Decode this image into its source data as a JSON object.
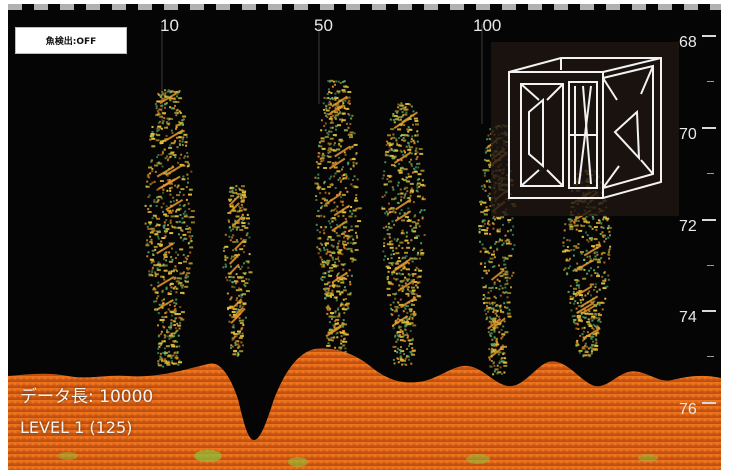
{
  "window": {
    "fish_detection_button": "魚検出:OFF",
    "ping_marks": [
      "10",
      "50",
      "100"
    ],
    "depth_scale": [
      "68",
      "70",
      "72",
      "74",
      "76"
    ],
    "data_length_label": "データ長: 10000",
    "level_label": "LEVEL 1 (125)"
  },
  "colors": {
    "background": "#050505",
    "seabed_orange": "#e0661a",
    "fish_yellow": "#e6c23a",
    "fish_green": "#4fa66a",
    "text": "#f4f4f4"
  },
  "icons": {
    "logo": "wireframe-cube-logo"
  }
}
